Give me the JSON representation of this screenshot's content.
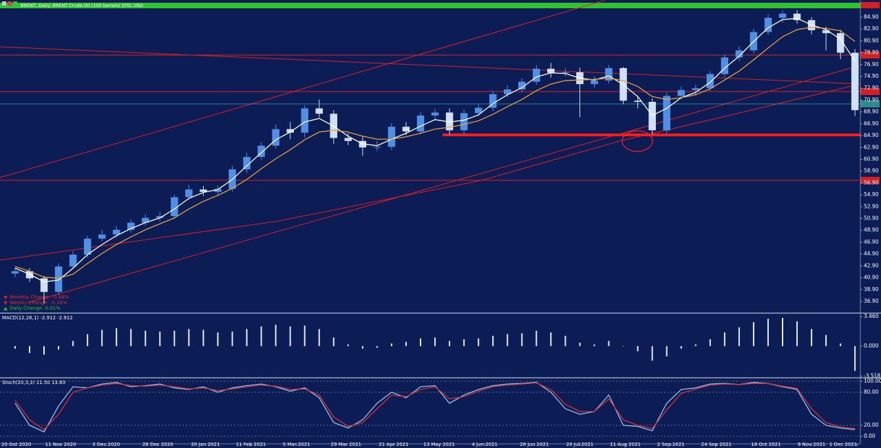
{
  "chart_data": [
    {
      "type": "candlestick",
      "title": "BRENT, Daily: BRENT Crude Oil (100 barrels) CFD, USD",
      "annotations": [
        "Monthly Change: -0.68%",
        "Weekly Change: -0.18%",
        "Daily Change: 0.01%"
      ],
      "x": [
        0,
        7,
        14,
        21,
        28,
        35,
        42,
        49,
        56,
        63,
        70,
        77,
        84,
        91,
        98,
        105,
        112,
        119,
        126,
        133,
        140,
        147,
        154,
        161,
        168,
        175,
        182,
        189,
        196,
        203,
        210,
        217,
        224,
        231,
        238,
        245,
        252,
        259,
        266,
        273,
        280,
        287,
        294,
        301,
        308,
        315,
        322,
        329,
        336,
        343,
        350,
        357,
        364,
        371,
        378,
        385,
        392,
        399,
        406
      ],
      "open": [
        41.6,
        42.0,
        40.8,
        38.5,
        42.8,
        44.8,
        47.5,
        48.2,
        49.0,
        50.2,
        51.0,
        51.3,
        54.5,
        55.8,
        55.4,
        55.9,
        59.2,
        61.3,
        63.2,
        66.0,
        65.4,
        69.5,
        68.6,
        64.5,
        64.0,
        62.9,
        63.0,
        66.4,
        65.6,
        68.3,
        68.8,
        65.8,
        68.7,
        69.6,
        71.9,
        72.7,
        74.0,
        76.2,
        75.5,
        75.6,
        73.6,
        74.2,
        76.3,
        70.8,
        70.6,
        65.8,
        71.6,
        72.6,
        72.9,
        75.3,
        78.1,
        79.3,
        82.4,
        84.8,
        85.5,
        84.4,
        82.7,
        82.2,
        78.9
      ],
      "high": [
        42.6,
        42.5,
        41.2,
        43.3,
        45.4,
        48.0,
        49.0,
        49.6,
        50.8,
        51.6,
        52.0,
        54.9,
        56.6,
        56.4,
        56.5,
        59.8,
        62.0,
        63.8,
        66.8,
        67.2,
        70.0,
        71.0,
        69.2,
        65.3,
        64.8,
        64.0,
        67.0,
        67.2,
        68.9,
        69.4,
        69.5,
        69.3,
        70.2,
        72.4,
        73.4,
        74.6,
        76.8,
        77.2,
        76.3,
        76.4,
        74.9,
        76.8,
        76.5,
        71.6,
        71.2,
        72.2,
        73.2,
        73.5,
        75.8,
        78.6,
        80.0,
        83.0,
        85.4,
        86.0,
        86.1,
        84.9,
        83.3,
        82.8,
        79.5
      ],
      "low": [
        41.0,
        40.2,
        36.6,
        38.0,
        42.4,
        44.3,
        47.0,
        47.7,
        48.5,
        49.7,
        50.4,
        50.8,
        54.0,
        54.7,
        54.9,
        55.4,
        58.6,
        60.8,
        62.7,
        64.3,
        64.6,
        68.0,
        63.5,
        63.3,
        61.5,
        62.3,
        62.5,
        65.0,
        65.1,
        67.5,
        65.0,
        65.2,
        68.2,
        69.0,
        71.4,
        72.2,
        73.5,
        74.7,
        74.9,
        68.0,
        73.0,
        73.7,
        70.2,
        69.5,
        65.1,
        65.3,
        71.0,
        71.8,
        72.5,
        74.8,
        77.5,
        78.8,
        81.9,
        84.0,
        83.8,
        82.0,
        79.3,
        77.8,
        68.2
      ],
      "close": [
        42.0,
        40.8,
        38.5,
        42.8,
        44.8,
        47.5,
        48.2,
        49.0,
        50.2,
        51.0,
        51.3,
        54.5,
        55.8,
        55.4,
        55.9,
        59.2,
        61.3,
        63.2,
        66.0,
        65.4,
        69.5,
        68.6,
        64.5,
        64.0,
        62.9,
        63.0,
        66.4,
        65.6,
        68.3,
        68.8,
        65.8,
        68.7,
        69.6,
        71.9,
        72.7,
        74.0,
        76.2,
        75.5,
        75.6,
        73.6,
        74.2,
        76.3,
        70.8,
        70.6,
        65.8,
        71.6,
        72.6,
        72.9,
        75.3,
        78.1,
        79.3,
        82.4,
        84.8,
        85.5,
        84.4,
        82.7,
        82.2,
        78.9,
        69.2
      ],
      "up_color": "#4f8fe6",
      "down_color": "#cfe0f7",
      "series": [
        {
          "color": "#ffffff",
          "values": [
            42.5,
            41.5,
            40.2,
            40.5,
            42.5,
            44.8,
            46.5,
            48.0,
            49.2,
            50.2,
            51.0,
            52.5,
            54.3,
            55.3,
            55.8,
            57.5,
            59.8,
            62.0,
            64.2,
            65.5,
            67.2,
            67.8,
            66.5,
            64.8,
            63.5,
            63.2,
            64.3,
            65.3,
            66.5,
            67.6,
            67.2,
            67.5,
            68.4,
            70.3,
            71.8,
            73.0,
            74.8,
            75.5,
            75.4,
            74.6,
            74.3,
            75.0,
            73.5,
            71.5,
            68.3,
            69.5,
            71.3,
            72.2,
            73.9,
            76.3,
            78.3,
            80.8,
            83.1,
            84.5,
            84.7,
            83.6,
            82.8,
            81.2,
            77.5
          ]
        },
        {
          "color": "#e8a33a",
          "values": [
            42.8,
            42.0,
            41.0,
            40.8,
            41.5,
            43.3,
            45.0,
            46.5,
            47.8,
            49.0,
            50.0,
            51.0,
            52.5,
            53.8,
            54.8,
            56.0,
            57.5,
            59.3,
            61.0,
            62.5,
            64.2,
            65.5,
            65.8,
            65.5,
            64.8,
            64.3,
            64.3,
            64.7,
            65.3,
            66.0,
            66.3,
            66.8,
            67.4,
            68.5,
            69.8,
            71.0,
            72.5,
            73.6,
            74.2,
            74.3,
            74.4,
            74.6,
            74.2,
            73.2,
            71.5,
            71.0,
            71.3,
            71.8,
            72.8,
            74.3,
            75.8,
            77.7,
            79.7,
            81.6,
            82.8,
            83.2,
            83.0,
            82.6,
            80.8
          ]
        }
      ],
      "xlim": [
        -7.3,
        408.6
      ],
      "xticks": [
        {
          "value": 0,
          "label": "20 Oct 2020"
        },
        {
          "value": 22,
          "label": "11 Nov 2020"
        },
        {
          "value": 44,
          "label": "3 Dec 2020"
        },
        {
          "value": 69,
          "label": "28 Dec 2020"
        },
        {
          "value": 92,
          "label": "20 Jan 2021"
        },
        {
          "value": 114,
          "label": "11 Feb 2021"
        },
        {
          "value": 136,
          "label": "5 Mar 2021"
        },
        {
          "value": 160,
          "label": "29 Mar 2021"
        },
        {
          "value": 183,
          "label": "21 Apr 2021"
        },
        {
          "value": 205,
          "label": "13 May 2021"
        },
        {
          "value": 227,
          "label": "4 Jun 2021"
        },
        {
          "value": 251,
          "label": "28 Jun 2021"
        },
        {
          "value": 273,
          "label": "20 Jul 2021"
        },
        {
          "value": 295,
          "label": "11 Aug 2021"
        },
        {
          "value": 317,
          "label": "2 Sep 2021"
        },
        {
          "value": 339,
          "label": "24 Sep 2021"
        },
        {
          "value": 363,
          "label": "18 Oct 2021"
        },
        {
          "value": 385,
          "label": "9 Nov 2021"
        },
        {
          "value": 407,
          "label": "1 Dec 2021"
        }
      ],
      "ylim": [
        34.92,
        86.41
      ],
      "yticks": [
        {
          "value": 36.9,
          "label": "36.90"
        },
        {
          "value": 38.9,
          "label": "38.90"
        },
        {
          "value": 40.9,
          "label": "40.90"
        },
        {
          "value": 42.9,
          "label": "42.90"
        },
        {
          "value": 44.9,
          "label": "44.90"
        },
        {
          "value": 46.9,
          "label": "46.90"
        },
        {
          "value": 48.9,
          "label": "48.90"
        },
        {
          "value": 50.9,
          "label": "50.90"
        },
        {
          "value": 52.9,
          "label": "52.90"
        },
        {
          "value": 54.9,
          "label": "54.90"
        },
        {
          "value": 56.9,
          "label": "56.90"
        },
        {
          "value": 58.9,
          "label": "58.90"
        },
        {
          "value": 60.9,
          "label": "60.90"
        },
        {
          "value": 62.9,
          "label": "62.90"
        },
        {
          "value": 64.9,
          "label": "64.90"
        },
        {
          "value": 66.9,
          "label": "66.90"
        },
        {
          "value": 68.9,
          "label": "68.90"
        },
        {
          "value": 70.9,
          "label": "70.90"
        },
        {
          "value": 72.9,
          "label": "72.90"
        },
        {
          "value": 74.9,
          "label": "74.90"
        },
        {
          "value": 76.9,
          "label": "76.90"
        },
        {
          "value": 78.9,
          "label": "78.90"
        },
        {
          "value": 80.9,
          "label": "80.90"
        },
        {
          "value": 82.9,
          "label": "82.90"
        },
        {
          "value": 84.9,
          "label": "84.90"
        }
      ]
    },
    {
      "type": "bar",
      "title": "MACD(12,26,1) -2.912 -2.912",
      "color": "#e6ecf7",
      "values": [
        -0.3,
        -0.8,
        -1.0,
        -0.4,
        0.6,
        1.4,
        1.9,
        2.1,
        2.0,
        1.8,
        1.7,
        1.8,
        2.0,
        1.9,
        1.6,
        1.7,
        2.0,
        2.3,
        2.5,
        2.3,
        2.4,
        2.0,
        1.0,
        0.2,
        -0.3,
        -0.2,
        0.3,
        0.5,
        0.9,
        1.0,
        0.6,
        0.8,
        0.9,
        1.2,
        1.4,
        1.5,
        1.8,
        1.6,
        1.2,
        0.4,
        0.2,
        0.6,
        0.0,
        -0.6,
        -1.7,
        -1.2,
        -0.3,
        0.2,
        0.8,
        1.6,
        2.2,
        2.8,
        3.2,
        3.3,
        2.9,
        2.0,
        1.3,
        0.3,
        -2.9
      ],
      "ylim": [
        -3.63,
        3.86
      ],
      "yticks": [
        {
          "value": 3.46,
          "label": "3.460"
        },
        {
          "value": 0,
          "label": "0.000"
        },
        {
          "value": -3.518,
          "label": "-3.518"
        }
      ]
    },
    {
      "type": "line",
      "title": "Stoch(20,3,3) 11.50 13.83",
      "series": [
        {
          "color": "#8fc6f0",
          "values": [
            60,
            20,
            8,
            55,
            90,
            88,
            95,
            98,
            90,
            92,
            95,
            88,
            85,
            90,
            80,
            88,
            92,
            95,
            90,
            82,
            88,
            70,
            25,
            15,
            30,
            60,
            80,
            70,
            90,
            92,
            60,
            75,
            85,
            92,
            95,
            96,
            98,
            80,
            50,
            40,
            45,
            75,
            20,
            18,
            10,
            60,
            85,
            88,
            95,
            96,
            94,
            98,
            96,
            90,
            85,
            40,
            20,
            15,
            12
          ]
        },
        {
          "color": "#e03030",
          "values": [
            65,
            30,
            12,
            40,
            80,
            88,
            93,
            96,
            92,
            91,
            93,
            90,
            86,
            88,
            83,
            86,
            90,
            93,
            91,
            85,
            86,
            75,
            35,
            18,
            25,
            50,
            75,
            72,
            85,
            90,
            68,
            72,
            82,
            90,
            93,
            95,
            97,
            85,
            58,
            45,
            45,
            68,
            30,
            20,
            14,
            48,
            78,
            86,
            93,
            95,
            94,
            96,
            96,
            91,
            87,
            50,
            25,
            17,
            14
          ]
        }
      ],
      "ylim": [
        -13.75,
        105
      ],
      "yticks": [
        {
          "value": 100,
          "label": "100.00"
        },
        {
          "value": 80,
          "label": "80.00"
        },
        {
          "value": 20,
          "label": "20.00"
        },
        {
          "value": 0,
          "label": "0.00"
        }
      ],
      "grid": true
    }
  ]
}
